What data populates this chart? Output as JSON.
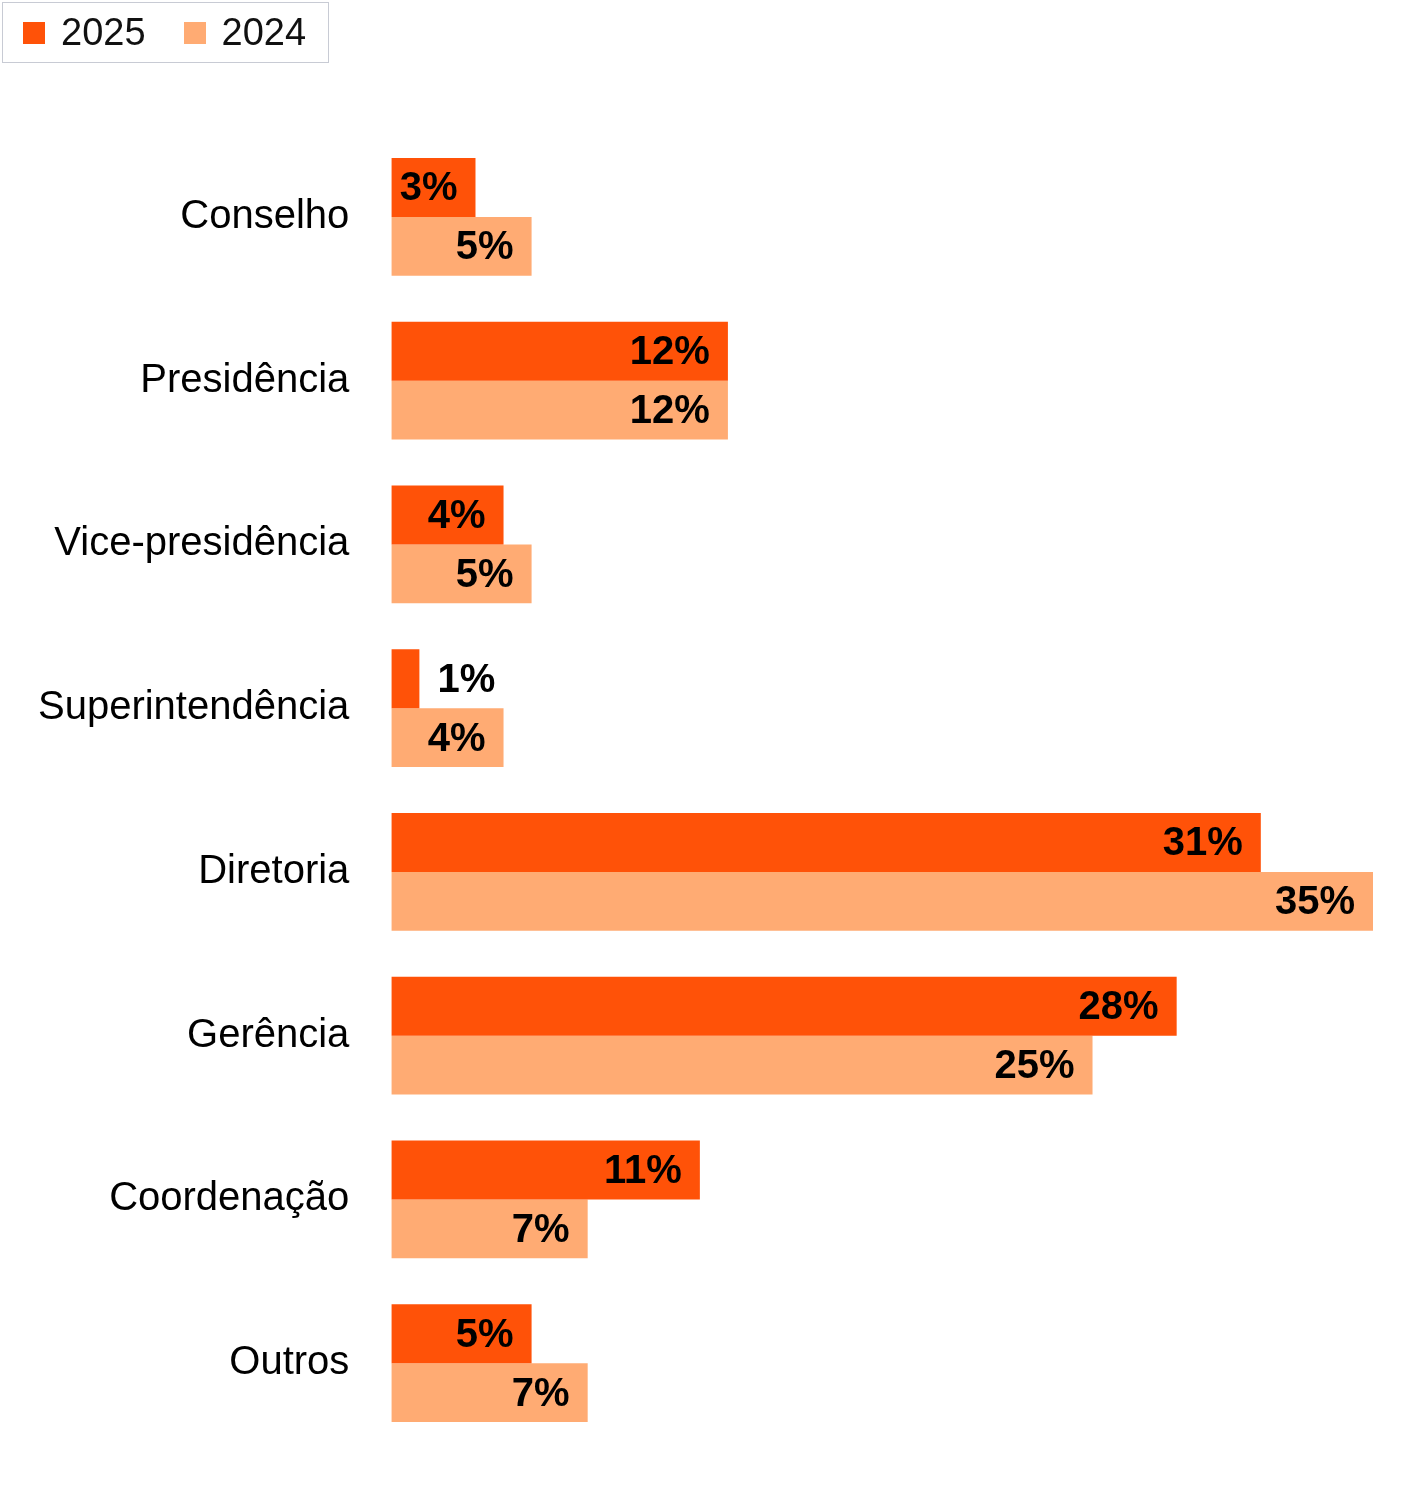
{
  "chart_data": {
    "type": "bar",
    "orientation": "horizontal",
    "categories": [
      "Conselho",
      "Presidência",
      "Vice-presidência",
      "Superintendência",
      "Diretoria",
      "Gerência",
      "Coordenação",
      "Outros"
    ],
    "series": [
      {
        "name": "2025",
        "color": "#ff5208",
        "values": [
          3,
          12,
          4,
          1,
          31,
          28,
          11,
          5
        ],
        "value_labels": [
          "3%",
          "12%",
          "4%",
          "1%",
          "31%",
          "28%",
          "11%",
          "5%"
        ]
      },
      {
        "name": "2024",
        "color": "#ffab73",
        "values": [
          5,
          12,
          5,
          4,
          35,
          25,
          7,
          7
        ],
        "value_labels": [
          "5%",
          "12%",
          "5%",
          "4%",
          "35%",
          "25%",
          "7%",
          "7%"
        ]
      }
    ],
    "legend": "top left"
  }
}
